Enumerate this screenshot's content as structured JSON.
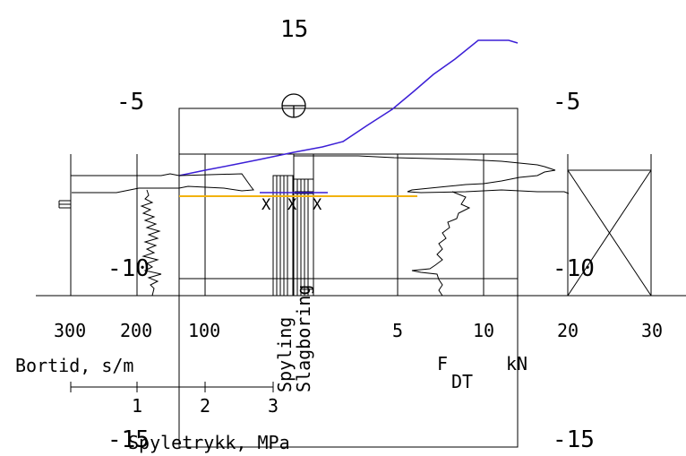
{
  "depth_labels": {
    "top": "15",
    "left_minus5": "-5",
    "right_minus5": "-5",
    "left_minus10": "-10",
    "right_minus10": "-10",
    "left_minus15": "-15",
    "right_minus15": "-15"
  },
  "bortid_axis": {
    "ticks": [
      "300",
      "200",
      "100"
    ],
    "label": "Bortid, s/m"
  },
  "force_axis": {
    "ticks": [
      "5",
      "10",
      "20",
      "30"
    ],
    "label_main": "F",
    "label_sub": "DT",
    "unit": "kN"
  },
  "pressure_axis": {
    "ticks": [
      "1",
      "2",
      "3"
    ],
    "label": "Spyletrykk, MPa"
  },
  "method_labels": {
    "spyling": "Spyling",
    "slagboring": "Slagboring"
  },
  "colors": {
    "line": "#000000",
    "purple_curve": "#3c1fd6",
    "orange_line": "#f2b20f"
  }
}
